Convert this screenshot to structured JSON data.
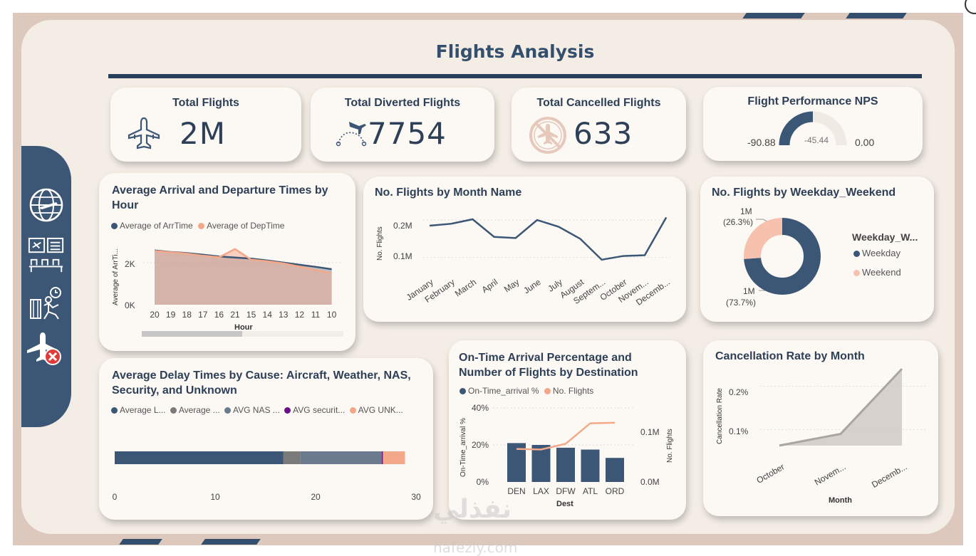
{
  "title": "Flights Analysis",
  "colors": {
    "navy": "#3c5775",
    "peach": "#f4a88a",
    "bg": "#f3ede5",
    "card": "#fcf8f4"
  },
  "nav": [
    "globe-icon",
    "flight-board-icon",
    "delay-icon",
    "flight-cancel-icon"
  ],
  "kpis": {
    "total_flights": {
      "title": "Total Flights",
      "value": "2M",
      "icon": "airplane-icon"
    },
    "diverted": {
      "title": "Total Diverted Flights",
      "value": "7754",
      "icon": "route-icon"
    },
    "cancelled": {
      "title": "Total Cancelled Flights",
      "value": "633",
      "icon": "no-flight-icon"
    },
    "nps": {
      "title": "Flight Performance NPS",
      "min": "-90.88",
      "value": "-45.44",
      "max": "0.00",
      "fill_fraction": 0.5
    }
  },
  "arr_dep": {
    "title": "Average Arrival and Departure Times by Hour",
    "legend": [
      "Average of ArrTime",
      "Average of DepTime"
    ],
    "ylabel": "Average of ArrTi...",
    "xlabel": "Hour",
    "yticks": [
      "2K",
      "0K"
    ]
  },
  "monthly": {
    "title": "No. Flights by Month Name",
    "ylabel": "No. Flights",
    "yticks": [
      "0.2M",
      "0.1M"
    ]
  },
  "weekday": {
    "title": "No. Flights by Weekday_Weekend",
    "legend_title": "Weekday_W...",
    "items": [
      "Weekday",
      "Weekend"
    ],
    "label_weekend": [
      "1M",
      "(26.3%)"
    ],
    "label_weekday": [
      "1M",
      "(73.7%)"
    ]
  },
  "delay": {
    "title": "Average Delay Times by Cause: Aircraft, Weather, NAS, Security, and Unknown",
    "legend": [
      "Average L...",
      "Average ...",
      "AVG NAS ...",
      "AVG securit...",
      "AVG UNK..."
    ],
    "xticks": [
      "0",
      "10",
      "20",
      "30"
    ]
  },
  "ontime": {
    "title": "On-Time Arrival Percentage and Number of Flights by Destination",
    "legend": [
      "On-Time_arrival %",
      "No. Flights"
    ],
    "ylabel_left": "On-Time_arrival %",
    "ylabel_right": "No. Flights",
    "xlabel": "Dest",
    "yticks_left": [
      "40%",
      "20%",
      "0%"
    ],
    "yticks_right": [
      "0.1M",
      "0.0M"
    ]
  },
  "cancel_rate": {
    "title": "Cancellation Rate by Month",
    "ylabel": "Cancellation Rate",
    "xlabel": "Month",
    "yticks": [
      "0.2%",
      "0.1%"
    ]
  },
  "watermark": {
    "line1": "نفذلي",
    "line2": "nafezly.com"
  },
  "chart_data": [
    {
      "type": "area",
      "title": "Average Arrival and Departure Times by Hour",
      "xlabel": "Hour",
      "ylabel": "Average of ArrTi...",
      "categories": [
        "20",
        "19",
        "18",
        "17",
        "16",
        "21",
        "15",
        "14",
        "13",
        "12",
        "11",
        "10"
      ],
      "series": [
        {
          "name": "Average of ArrTime",
          "values": [
            2050,
            1990,
            1950,
            1890,
            1820,
            1780,
            1740,
            1670,
            1590,
            1510,
            1430,
            1340
          ]
        },
        {
          "name": "Average of DepTime",
          "values": [
            2030,
            1980,
            1930,
            1850,
            1790,
            2100,
            1700,
            1640,
            1560,
            1440,
            1310,
            1190
          ]
        }
      ],
      "ylim": [
        0,
        2500
      ]
    },
    {
      "type": "line",
      "title": "No. Flights by Month Name",
      "ylabel": "No. Flights",
      "categories": [
        "January",
        "February",
        "March",
        "April",
        "May",
        "June",
        "July",
        "August",
        "Septem...",
        "October",
        "Novem...",
        "Decemb..."
      ],
      "values": [
        185000,
        190000,
        202000,
        155000,
        152000,
        200000,
        182000,
        150000,
        94000,
        104000,
        106000,
        207000
      ],
      "ylim": [
        50000,
        240000
      ]
    },
    {
      "type": "pie",
      "title": "No. Flights by Weekday_Weekend",
      "categories": [
        "Weekday",
        "Weekend"
      ],
      "values": [
        73.7,
        26.3
      ]
    },
    {
      "type": "bar",
      "title": "Average Delay Times by Cause: Aircraft, Weather, NAS, Security, and Unknown",
      "series": [
        {
          "name": "Average L...",
          "values": [
            16.8
          ]
        },
        {
          "name": "Average ...",
          "values": [
            1.7
          ]
        },
        {
          "name": "AVG NAS ...",
          "values": [
            8.1
          ]
        },
        {
          "name": "AVG securit...",
          "values": [
            0.1
          ]
        },
        {
          "name": "AVG UNK...",
          "values": [
            2.2
          ]
        }
      ],
      "xlim": [
        0,
        30
      ]
    },
    {
      "type": "bar",
      "title": "On-Time Arrival Percentage and Number of Flights by Destination",
      "categories": [
        "DEN",
        "LAX",
        "DFW",
        "ATL",
        "ORD"
      ],
      "series": [
        {
          "name": "On-Time_arrival %",
          "values": [
            21,
            20,
            18.5,
            17.5,
            13
          ]
        },
        {
          "name": "No. Flights",
          "values": [
            58000,
            57000,
            67000,
            103000,
            104000
          ]
        }
      ],
      "ylim": [
        0,
        40
      ],
      "y2lim": [
        0,
        0.13
      ]
    },
    {
      "type": "area",
      "title": "Cancellation Rate by Month",
      "xlabel": "Month",
      "ylabel": "Cancellation Rate",
      "categories": [
        "October",
        "Novem...",
        "Decemb..."
      ],
      "values": [
        0.063,
        0.09,
        0.24
      ],
      "ylim": [
        0.03,
        0.25
      ]
    }
  ]
}
